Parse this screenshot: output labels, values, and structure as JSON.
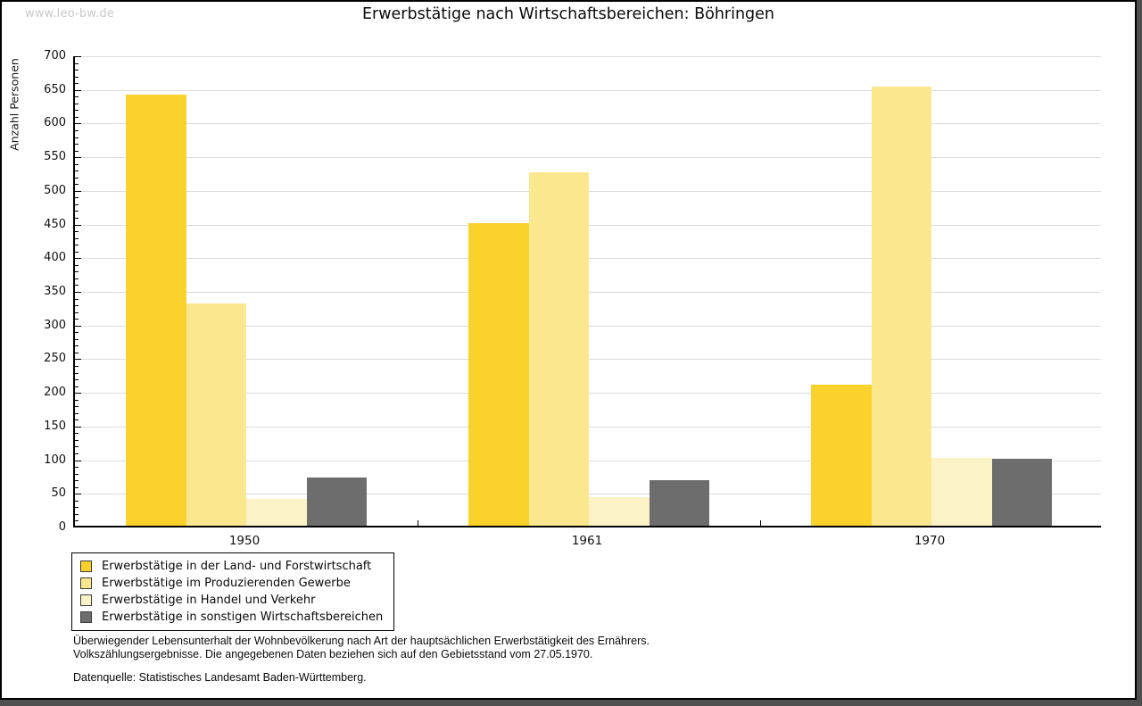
{
  "page": {
    "watermark": "www.leo-bw.de",
    "title": "Erwerbstätige nach Wirtschaftsbereichen: Böhringen"
  },
  "chart_data": {
    "type": "bar",
    "title": "Erwerbstätige nach Wirtschaftsbereichen: Böhringen",
    "xlabel": "",
    "ylabel": "Anzahl Personen",
    "categories": [
      "1950",
      "1961",
      "1970"
    ],
    "series": [
      {
        "name": "Erwerbstätige in der Land- und Forstwirtschaft",
        "slug": "land-und-forstwirtschaft",
        "color": "#fbd22b",
        "values": [
          640,
          450,
          210
        ]
      },
      {
        "name": "Erwerbstätige im Produzierenden Gewerbe",
        "slug": "produzierendes-gewerbe",
        "color": "#fbe78d",
        "values": [
          330,
          525,
          652
        ]
      },
      {
        "name": "Erwerbstätige in Handel und Verkehr",
        "slug": "handel-und-verkehr",
        "color": "#fbf3c5",
        "values": [
          40,
          43,
          101
        ]
      },
      {
        "name": "Erwerbstätige in sonstigen Wirtschaftsbereichen",
        "slug": "sonstige-wirtschaftsbereiche",
        "color": "#6d6d6d",
        "values": [
          72,
          68,
          100
        ]
      }
    ],
    "ylim": [
      0,
      700
    ],
    "ytick_step": 50,
    "ytick_minor_step": 10,
    "grid": true,
    "legend_position": "bottom-left"
  },
  "footer": {
    "line1": "Überwiegender Lebensunterhalt der Wohnbevölkerung nach Art der hauptsächlichen Erwerbstätigkeit des Ernährers.",
    "line2": "Volkszählungsergebnisse. Die angegebenen Daten beziehen sich auf den Gebietsstand vom 27.05.1970.",
    "source": "Datenquelle: Statistisches Landesamt Baden-Württemberg."
  }
}
